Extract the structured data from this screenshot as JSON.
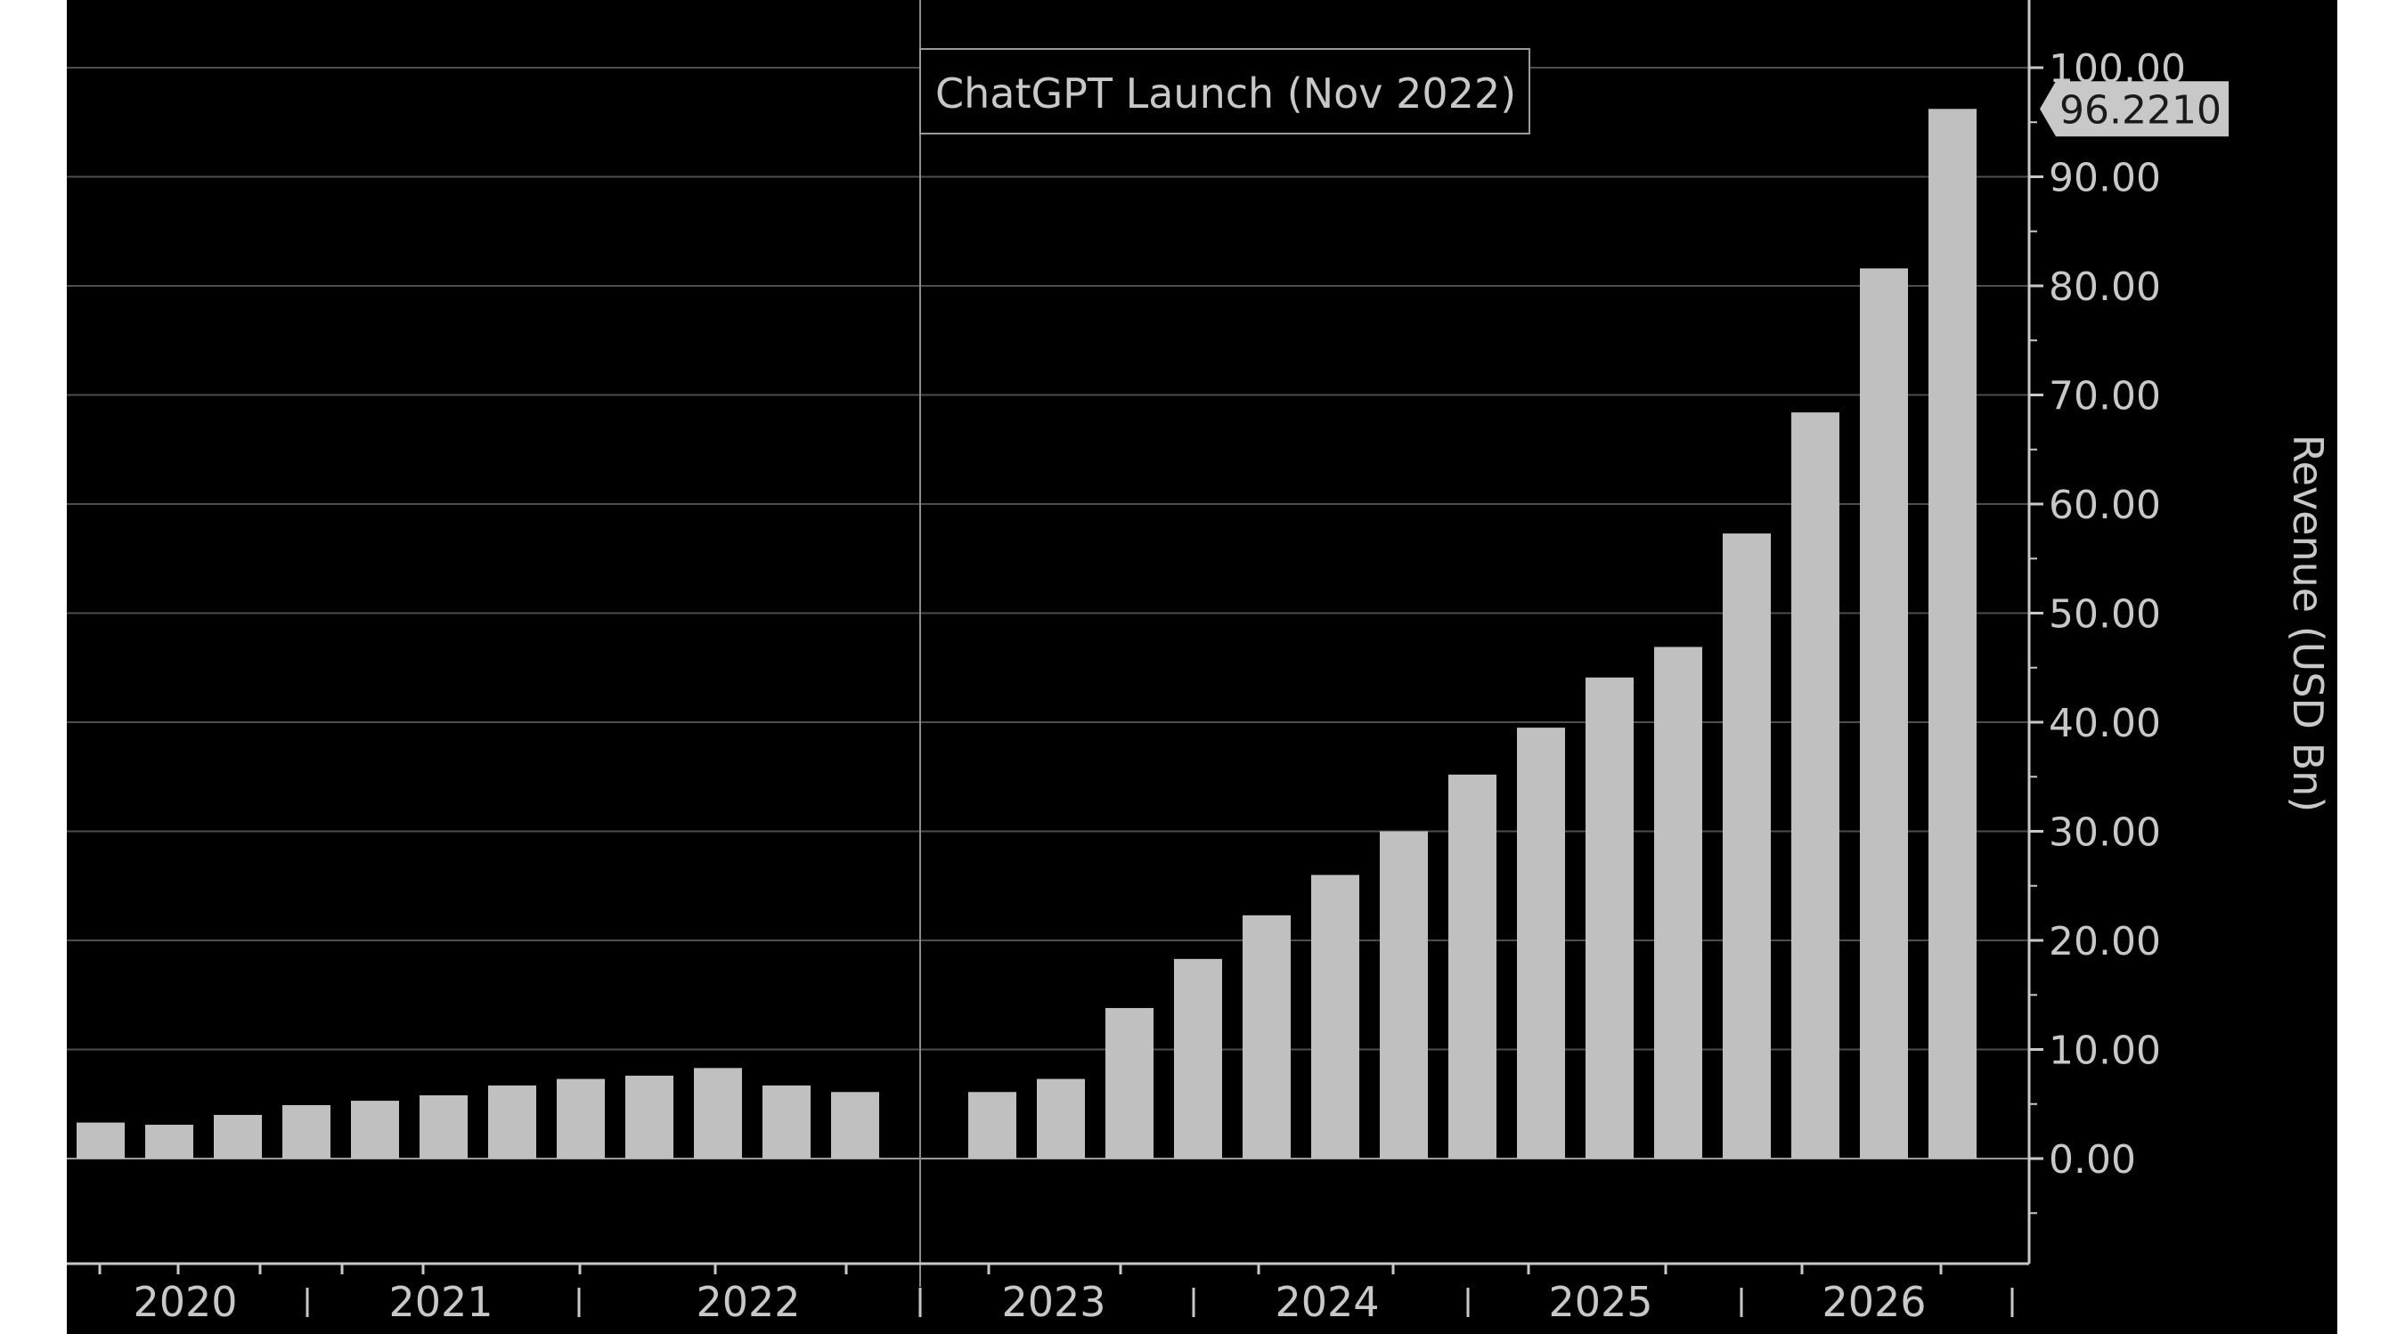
{
  "chart_data": {
    "type": "bar",
    "title": "",
    "xlabel": "",
    "ylabel": "Revenue (USD Bn)",
    "ylim": [
      -5,
      104
    ],
    "y_ticks": [
      "0.00",
      "10.00",
      "20.00",
      "30.00",
      "40.00",
      "50.00",
      "60.00",
      "70.00",
      "80.00",
      "90.00",
      "100.00"
    ],
    "x_year_labels": [
      "2020",
      "2021",
      "2022",
      "2023",
      "2024",
      "2025",
      "2026"
    ],
    "last_value_label": "96.2210",
    "grid": true,
    "annotation": {
      "label": "ChatGPT Launch (Nov 2022)",
      "position": "between 2022 and 2023"
    },
    "series": [
      {
        "values": [
          3.3,
          3.1,
          4.0,
          4.9,
          5.3,
          5.8,
          6.7,
          7.3,
          7.6,
          8.3,
          6.7,
          6.1,
          null,
          6.1,
          7.3,
          13.8,
          18.3,
          22.3,
          26.0,
          30.0,
          35.2,
          39.5,
          44.1,
          46.9,
          57.3,
          68.4,
          81.6,
          96.221
        ]
      }
    ],
    "colors": {
      "background": "#000000",
      "bar": "#c0c0c0",
      "grid": "#4d4d4d",
      "axis": "#c8c8c8",
      "text": "#c8c8c8",
      "label_box": "#c8c8c8",
      "label_text": "#1a1a1a"
    }
  }
}
